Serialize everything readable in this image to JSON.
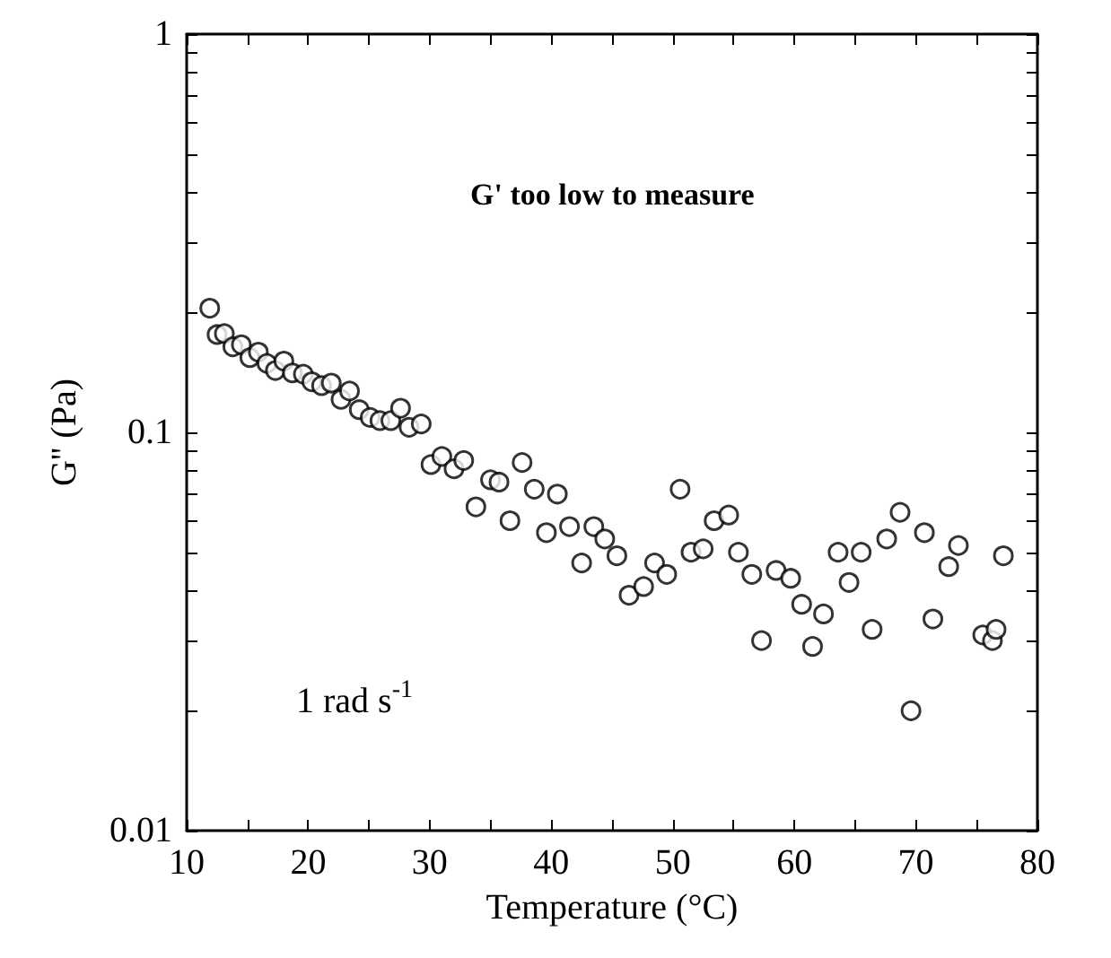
{
  "chart_data": {
    "type": "scatter",
    "xlabel": "Temperature (°C)",
    "ylabel": "G'' (Pa)",
    "annotations": [
      "G' too low to measure",
      "1 rad s$^{-1}$"
    ],
    "x": [
      11.9,
      12.5,
      13.1,
      13.8,
      14.5,
      15.2,
      15.9,
      16.6,
      17.3,
      18.0,
      18.7,
      19.6,
      20.3,
      21.1,
      21.9,
      22.7,
      23.4,
      24.2,
      25.1,
      25.9,
      26.8,
      27.6,
      28.3,
      29.3,
      30.1,
      31.0,
      32.0,
      32.8,
      33.8,
      35.0,
      35.7,
      36.6,
      37.6,
      38.6,
      39.6,
      40.5,
      41.5,
      42.5,
      43.5,
      44.4,
      45.4,
      46.4,
      47.6,
      48.5,
      49.5,
      50.6,
      51.5,
      52.5,
      53.4,
      54.6,
      55.4,
      56.5,
      57.3,
      58.5,
      59.7,
      60.6,
      61.5,
      62.4,
      63.6,
      64.5,
      65.5,
      66.4,
      67.6,
      68.7,
      69.6,
      70.7,
      71.4,
      72.7,
      73.5,
      75.5,
      76.3,
      76.6,
      77.2
    ],
    "values": [
      0.205,
      0.176,
      0.177,
      0.164,
      0.166,
      0.154,
      0.159,
      0.149,
      0.143,
      0.151,
      0.141,
      0.14,
      0.134,
      0.131,
      0.133,
      0.121,
      0.127,
      0.114,
      0.109,
      0.107,
      0.107,
      0.115,
      0.103,
      0.105,
      0.083,
      0.087,
      0.081,
      0.085,
      0.065,
      0.076,
      0.075,
      0.06,
      0.084,
      0.072,
      0.056,
      0.07,
      0.058,
      0.047,
      0.058,
      0.054,
      0.049,
      0.039,
      0.041,
      0.047,
      0.044,
      0.072,
      0.05,
      0.051,
      0.06,
      0.062,
      0.05,
      0.044,
      0.03,
      0.045,
      0.043,
      0.037,
      0.029,
      0.035,
      0.05,
      0.042,
      0.05,
      0.032,
      0.054,
      0.063,
      0.02,
      0.056,
      0.034,
      0.046,
      0.052,
      0.031,
      0.03,
      0.032,
      0.049
    ],
    "color": "#000000",
    "marker": "circle",
    "log": "y",
    "grid": false,
    "xlim": [
      10,
      80
    ],
    "xticks": [
      10,
      {
        "value": 15,
        "label": null
      },
      20,
      {
        "value": 25,
        "label": null
      },
      30,
      {
        "value": 35,
        "label": null
      },
      40,
      {
        "value": 45,
        "label": null
      },
      50,
      {
        "value": 55,
        "label": null
      },
      60,
      {
        "value": 65,
        "label": null
      },
      70,
      {
        "value": 75,
        "label": null
      },
      80
    ],
    "ylim": [
      0.01,
      1
    ],
    "yticks": [
      0.01,
      {
        "value": 0.02,
        "label": null
      },
      {
        "value": 0.03,
        "label": null
      },
      {
        "value": 0.04,
        "label": null
      },
      {
        "value": 0.05,
        "label": null
      },
      {
        "value": 0.06,
        "label": null
      },
      {
        "value": 0.07,
        "label": null
      },
      {
        "value": 0.08,
        "label": null
      },
      {
        "value": 0.09,
        "label": null
      },
      0.1,
      {
        "value": 0.2,
        "label": null
      },
      {
        "value": 0.3,
        "label": null
      },
      {
        "value": 0.4,
        "label": null
      },
      {
        "value": 0.5,
        "label": null
      },
      {
        "value": 0.6,
        "label": null
      },
      {
        "value": 0.7,
        "label": null
      },
      {
        "value": 0.8,
        "label": null
      },
      {
        "value": 0.9,
        "label": null
      },
      1
    ]
  }
}
